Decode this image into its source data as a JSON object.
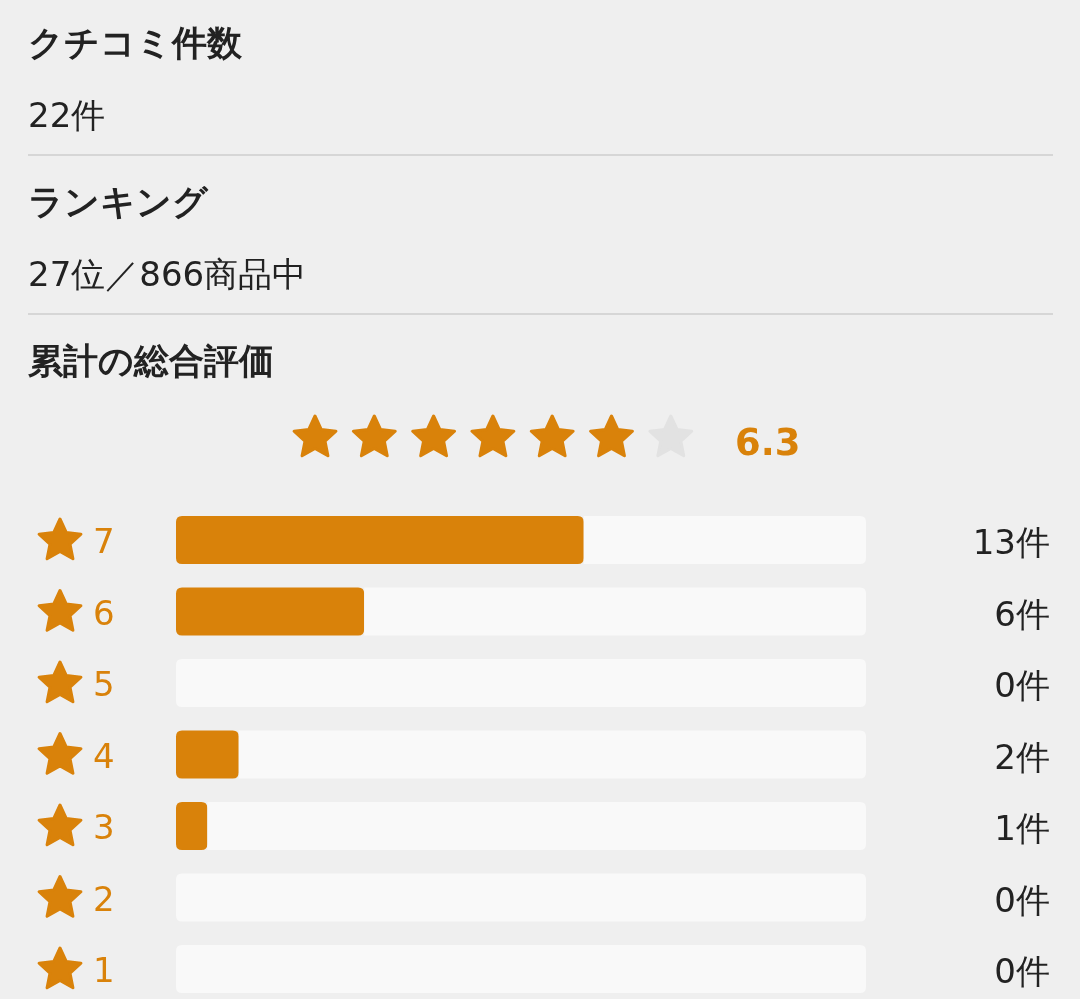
{
  "chart_data": {
    "type": "bar",
    "orientation": "horizontal",
    "stacked": true,
    "title": "累計の総合評価",
    "annotations": [
      "クチコミ件数",
      "22件",
      "ランキング",
      "27位／866商品中",
      "6.3"
    ],
    "categories": [
      "7",
      "6",
      "5",
      "4",
      "3",
      "2",
      "1"
    ],
    "series": [
      {
        "color": "#d9820a",
        "values": [
          13,
          6,
          0,
          2,
          1,
          0,
          0
        ],
        "value_labels": [
          "13件",
          "6件",
          "0件",
          "2件",
          "1件",
          "0件",
          "0件"
        ]
      },
      {
        "color": "#f9f9f9",
        "values": [
          9,
          16,
          22,
          20,
          21,
          22,
          22
        ]
      }
    ],
    "xlim": [
      0,
      22
    ],
    "tick_labels": "y"
  }
}
